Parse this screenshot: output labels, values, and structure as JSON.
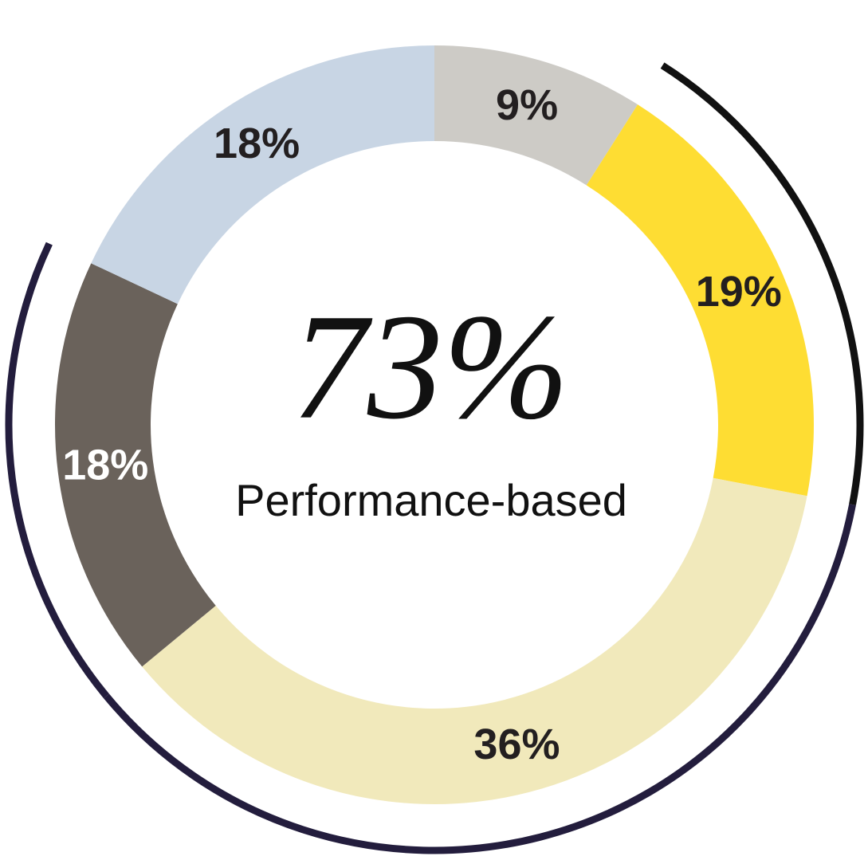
{
  "chart_data": {
    "type": "donut",
    "center_value": "73%",
    "center_label": "Performance-based",
    "values": [
      9,
      19,
      36,
      18,
      18
    ],
    "value_labels": [
      "9%",
      "19%",
      "36%",
      "18%",
      "18%"
    ],
    "colors": [
      "#cdcbc6",
      "#fedd33",
      "#f1e9bb",
      "#6a625b",
      "#c8d5e4"
    ],
    "outer_arc_colors": [
      null,
      "#111111",
      "#231d3d",
      "#231d3d",
      null
    ]
  }
}
